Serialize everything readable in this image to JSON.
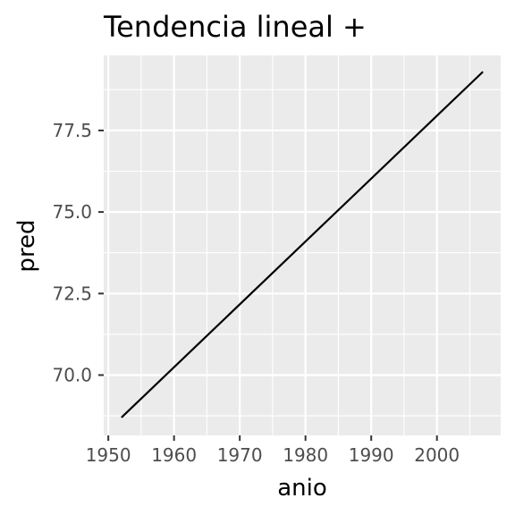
{
  "chart_data": {
    "type": "line",
    "title": "Tendencia lineal +",
    "xlabel": "anio",
    "ylabel": "pred",
    "x_ticks": [
      1950,
      1960,
      1970,
      1980,
      1990,
      2000
    ],
    "y_ticks": [
      70.0,
      72.5,
      75.0,
      77.5
    ],
    "x_tick_labels": [
      "1950",
      "1960",
      "1970",
      "1980",
      "1990",
      "2000"
    ],
    "y_tick_labels": [
      "70.0",
      "72.5",
      "75.0",
      "77.5"
    ],
    "xlim": [
      1949.3,
      2009.7
    ],
    "ylim": [
      68.15,
      79.8
    ],
    "grid": true,
    "series": [
      {
        "x": [
          1952,
          2007
        ],
        "y": [
          68.7,
          79.3
        ]
      }
    ],
    "colors": {
      "panel": "#ebebeb",
      "grid_major": "#ffffff",
      "line": "#000000",
      "tick_text": "#4d4d4d"
    }
  }
}
